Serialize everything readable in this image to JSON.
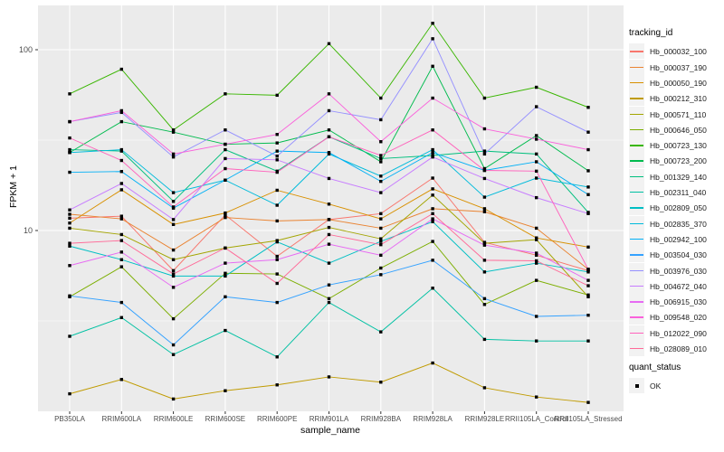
{
  "chart_data": {
    "type": "line",
    "title": "",
    "xlabel": "sample_name",
    "ylabel": "FPKM + 1",
    "y_scale": "log10",
    "ylim": [
      1.02,
      176
    ],
    "y_major_ticks": [
      100,
      10
    ],
    "y_minor_ticks": [
      31.62,
      3.162
    ],
    "grid": true,
    "legend_position": "right",
    "panel_bg": "#EBEBEB",
    "grid_color": "#FFFFFF",
    "tick_label_color": "#4D4D4D",
    "marker": "black-square",
    "categories": [
      "PB350LA",
      "RRIM600LA",
      "RRIM600LE",
      "RRIM600SE",
      "RRIM600PE",
      "RRIM901LA",
      "RRIM928BA",
      "RRIM928LA",
      "RRIM928LE",
      "RRII105LA_Control",
      "RRII105LA_Stressed"
    ],
    "series": [
      {
        "name": "Hb_000032_100",
        "color": "#F8766D",
        "values": [
          11.7,
          12.0,
          6.0,
          12.2,
          7.2,
          11.5,
          12.4,
          19.5,
          8.6,
          7.3,
          6.0
        ]
      },
      {
        "name": "Hb_000037_190",
        "color": "#EA8331",
        "values": [
          12.3,
          11.6,
          7.8,
          11.8,
          11.3,
          11.5,
          10.3,
          13.2,
          12.7,
          10.3,
          6.1
        ]
      },
      {
        "name": "Hb_000050_190",
        "color": "#D89000",
        "values": [
          11.0,
          16.8,
          10.8,
          12.5,
          16.7,
          14.0,
          11.6,
          17.0,
          13.2,
          9.1,
          8.1
        ]
      },
      {
        "name": "Hb_000212_310",
        "color": "#C09B00",
        "values": [
          1.25,
          1.5,
          1.17,
          1.3,
          1.4,
          1.55,
          1.45,
          1.85,
          1.35,
          1.2,
          1.12
        ]
      },
      {
        "name": "Hb_000571_110",
        "color": "#A3A500",
        "values": [
          10.3,
          9.5,
          6.9,
          8.0,
          8.8,
          10.4,
          9.0,
          15.7,
          8.5,
          8.9,
          4.3
        ]
      },
      {
        "name": "Hb_000646_050",
        "color": "#7CAE00",
        "values": [
          4.3,
          6.3,
          3.25,
          5.8,
          5.75,
          4.2,
          6.2,
          8.7,
          3.9,
          5.3,
          4.4
        ]
      },
      {
        "name": "Hb_000723_130",
        "color": "#39B600",
        "values": [
          57,
          78,
          36,
          57,
          56,
          108,
          54,
          140,
          54,
          62,
          48
        ]
      },
      {
        "name": "Hb_000723_200",
        "color": "#00BB4E",
        "values": [
          27,
          40,
          35,
          30,
          30.5,
          36,
          24,
          81,
          22,
          33.5,
          21.4
        ]
      },
      {
        "name": "Hb_001329_140",
        "color": "#00BF7D",
        "values": [
          28,
          27.5,
          14.5,
          28,
          21.3,
          33,
          25,
          26,
          27.5,
          26.5,
          12.6
        ]
      },
      {
        "name": "Hb_002311_040",
        "color": "#00C1A3",
        "values": [
          2.6,
          3.3,
          2.06,
          2.8,
          2.0,
          4.0,
          2.75,
          4.8,
          2.5,
          2.45,
          2.45
        ]
      },
      {
        "name": "Hb_002809_050",
        "color": "#00BFC4",
        "values": [
          8.2,
          6.9,
          5.6,
          5.6,
          8.65,
          6.6,
          8.7,
          11.2,
          5.9,
          6.6,
          5.9
        ]
      },
      {
        "name": "Hb_002835_370",
        "color": "#00BBDB",
        "values": [
          27,
          28,
          16.2,
          19,
          13.8,
          26.5,
          20,
          28,
          15.3,
          19.5,
          17.4
        ]
      },
      {
        "name": "Hb_002942_100",
        "color": "#00B0F6",
        "values": [
          21,
          21.2,
          13.3,
          19,
          27.5,
          27,
          18.7,
          27,
          21.5,
          24,
          15.8
        ]
      },
      {
        "name": "Hb_003504_030",
        "color": "#35A2FF",
        "values": [
          4.35,
          4.0,
          2.33,
          4.3,
          4.0,
          5.0,
          5.7,
          6.85,
          4.2,
          3.35,
          3.4
        ]
      },
      {
        "name": "Hb_003976_030",
        "color": "#9590FF",
        "values": [
          40,
          45,
          25.5,
          36,
          25.8,
          46,
          41,
          115,
          26.5,
          48.4,
          35
        ]
      },
      {
        "name": "Hb_004672_040",
        "color": "#C77CFF",
        "values": [
          13,
          18.2,
          11.5,
          25,
          24.6,
          19.4,
          16.2,
          25.5,
          19.4,
          15.2,
          12.4
        ]
      },
      {
        "name": "Hb_006915_030",
        "color": "#E76BF3",
        "values": [
          6.4,
          7.6,
          4.85,
          6.6,
          6.9,
          8.4,
          7.3,
          11.6,
          8.3,
          7.5,
          5.3
        ]
      },
      {
        "name": "Hb_009548_020",
        "color": "#FA62DB",
        "values": [
          40,
          46,
          26.5,
          30,
          34,
          57,
          31,
          54,
          36.5,
          32,
          28
        ]
      },
      {
        "name": "Hb_012022_090",
        "color": "#FF62BC",
        "values": [
          32.5,
          24.4,
          13.5,
          22,
          21,
          33,
          26,
          36,
          21.5,
          21.3,
          6.1
        ]
      },
      {
        "name": "Hb_028089_010",
        "color": "#FF6A98",
        "values": [
          8.5,
          8.8,
          5.75,
          8.0,
          5.1,
          9.5,
          8.35,
          12.4,
          6.85,
          6.8,
          4.95
        ]
      }
    ],
    "legend": {
      "tracking_title": "tracking_id",
      "quant_title": "quant_status",
      "quant_items": [
        "OK"
      ]
    }
  }
}
